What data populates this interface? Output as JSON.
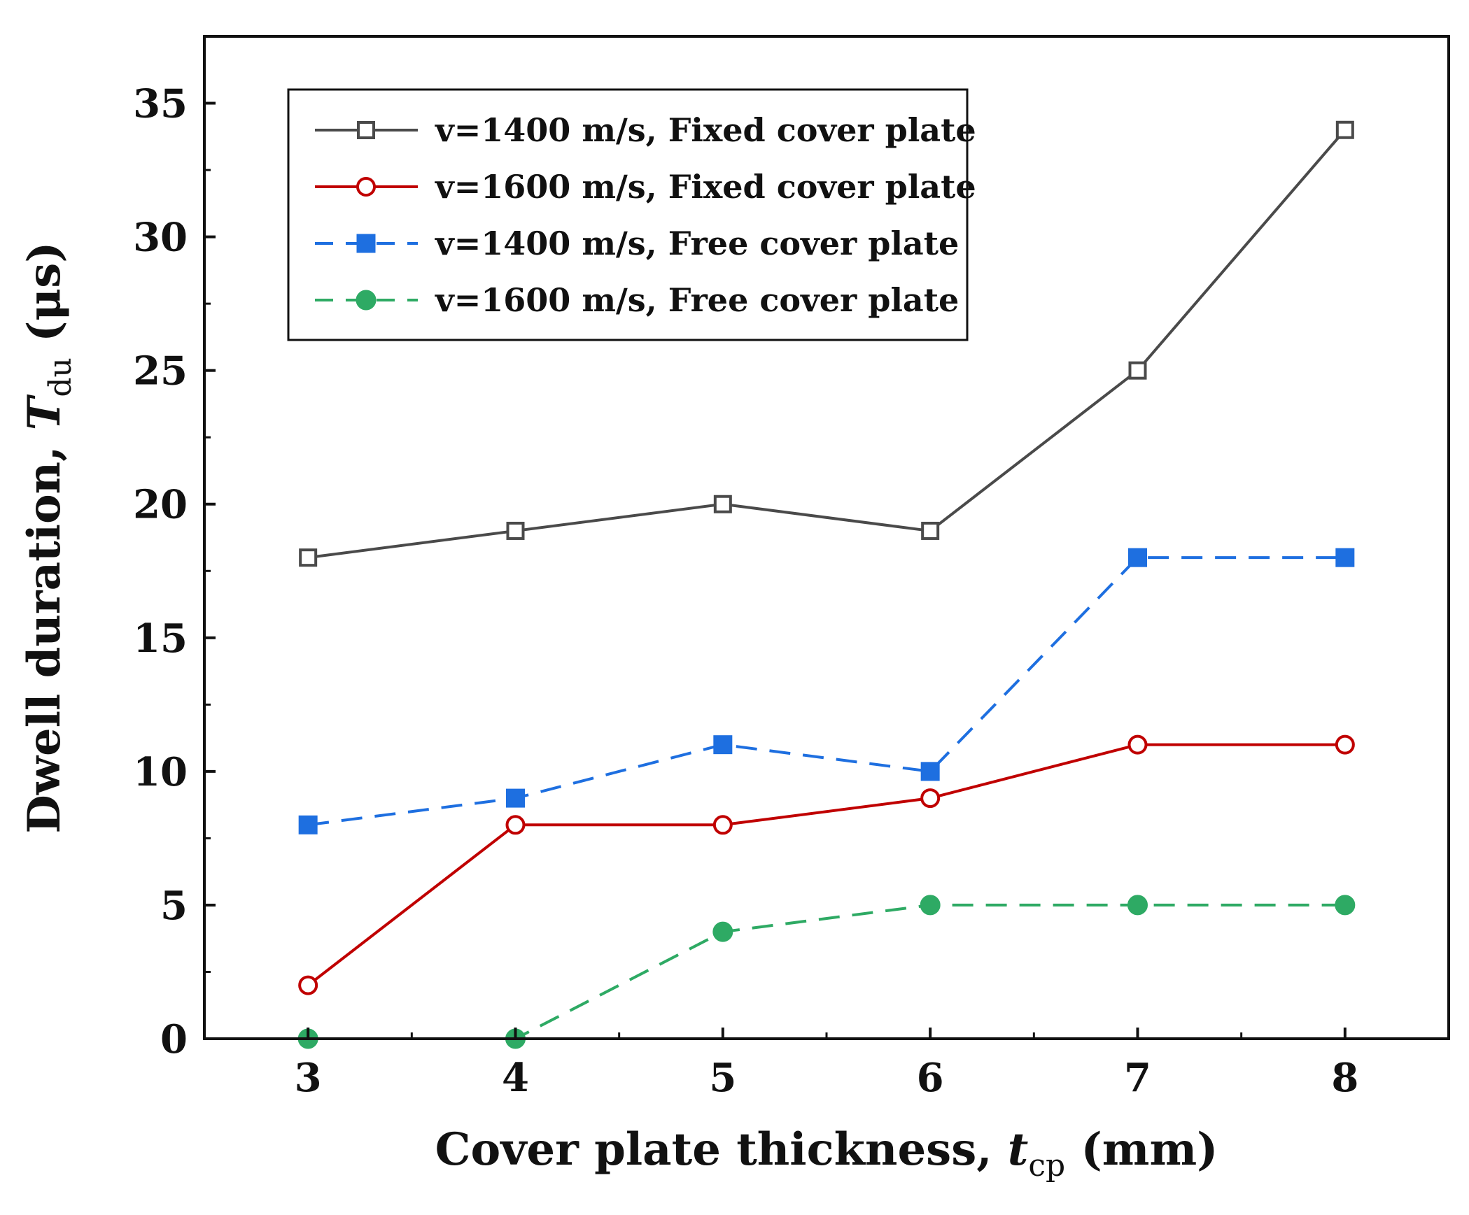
{
  "chart_data": {
    "type": "line",
    "x": [
      3,
      4,
      5,
      6,
      7,
      8
    ],
    "series": [
      {
        "name": "v=1400 m/s, Fixed cover plate",
        "values": [
          18,
          19,
          20,
          19,
          25,
          34
        ],
        "color": "#4a4a4a",
        "marker": "open-square",
        "dash": "solid"
      },
      {
        "name": "v=1600 m/s, Fixed cover plate",
        "values": [
          2,
          8,
          8,
          9,
          11,
          11
        ],
        "color": "#c00000",
        "marker": "open-circle",
        "dash": "solid"
      },
      {
        "name": "v=1400 m/s, Free cover plate",
        "values": [
          8,
          9,
          11,
          10,
          18,
          18
        ],
        "color": "#1e6fe0",
        "marker": "filled-square",
        "dash": "dashed"
      },
      {
        "name": "v=1600 m/s, Free cover plate",
        "values": [
          0,
          0,
          4,
          5,
          5,
          5
        ],
        "color": "#2eaa64",
        "marker": "filled-circle",
        "dash": "dashed"
      }
    ],
    "xlabel": {
      "main": "Cover plate thickness, ",
      "symbol": "t",
      "subscript": "cp",
      "unit": " (mm)"
    },
    "ylabel": {
      "main": "Dwell duration, ",
      "symbol": "T",
      "subscript": "du",
      "unit": " (μs)"
    },
    "xlim": [
      2.5,
      8.5
    ],
    "ylim": [
      0,
      37.5
    ],
    "xticks": [
      3,
      4,
      5,
      6,
      7,
      8
    ],
    "yticks": [
      0,
      5,
      10,
      15,
      20,
      25,
      30,
      35
    ],
    "grid": false,
    "legend_position": "top-left"
  }
}
